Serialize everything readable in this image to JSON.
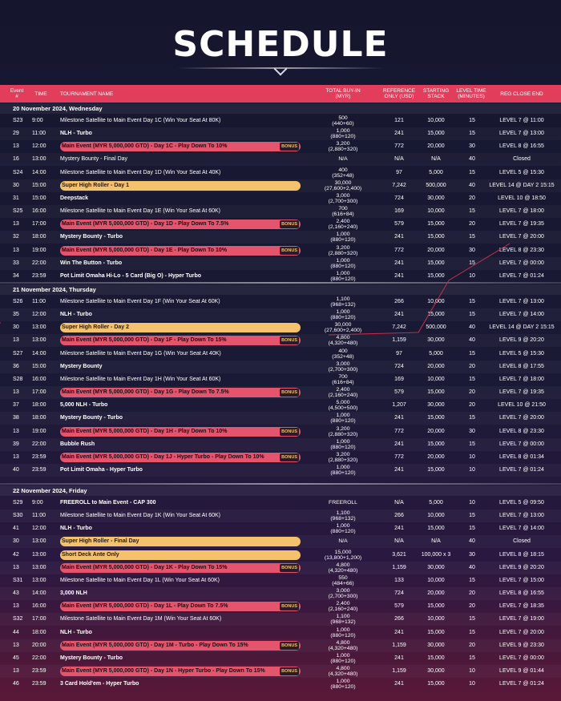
{
  "title": "SCHEDULE",
  "columns": {
    "event": "Event #",
    "time": "TIME",
    "name": "TOURNAMENT NAME",
    "buyin": "TOTAL BUY-IN (MYR)",
    "ref": "REFERENCE ONLY (USD)",
    "stack": "STARTING STACK",
    "level": "LEVEL TIME (MINUTES)",
    "reg": "REG CLOSE END"
  },
  "badge_label": "BONUS",
  "sections": [
    {
      "date": "20 November 2024, Wednesday",
      "rows": [
        {
          "event": "S23",
          "time": "9:00",
          "name": "Milestone Satellite to Main Event Day 1C (Win Your Seat At 80K)",
          "hl": "",
          "buy1": "500",
          "buy2": "(440+60)",
          "ref": "121",
          "stack": "10,000",
          "level": "15",
          "reg": "LEVEL 7 @ 11:00"
        },
        {
          "event": "29",
          "time": "11:00",
          "name": "NLH - Turbo",
          "hl": "bold",
          "buy1": "1,000",
          "buy2": "(880+120)",
          "ref": "241",
          "stack": "15,000",
          "level": "15",
          "reg": "LEVEL 7 @ 13:00"
        },
        {
          "event": "13",
          "time": "12:00",
          "name": "Main Event (MYR 5,000,000 GTD) - Day 1C - Play Down To 10%",
          "hl": "red",
          "badge": true,
          "buy1": "3,200",
          "buy2": "(2,880+320)",
          "ref": "772",
          "stack": "20,000",
          "level": "30",
          "reg": "LEVEL 8 @ 16:55"
        },
        {
          "event": "16",
          "time": "13:00",
          "name": "Mystery Bounty - Final Day",
          "hl": "",
          "buy1": "N/A",
          "buy2": "",
          "ref": "N/A",
          "stack": "N/A",
          "level": "40",
          "reg": "Closed"
        },
        {
          "event": "S24",
          "time": "14:00",
          "name": "Milestone Satellite to Main Event Day 1D (Win Your Seat At 40K)",
          "hl": "",
          "buy1": "400",
          "buy2": "(352+48)",
          "ref": "97",
          "stack": "5,000",
          "level": "15",
          "reg": "LEVEL 5 @ 15:30"
        },
        {
          "event": "30",
          "time": "15:00",
          "name": "Super High Roller - Day 1",
          "hl": "yellow",
          "buy1": "30,000",
          "buy2": "(27,600+2,400)",
          "ref": "7,242",
          "stack": "500,000",
          "level": "40",
          "reg": "LEVEL 14 @ DAY 2 15:15"
        },
        {
          "event": "31",
          "time": "15:00",
          "name": "Deepstack",
          "hl": "bold",
          "buy1": "3,000",
          "buy2": "(2,700+300)",
          "ref": "724",
          "stack": "30,000",
          "level": "20",
          "reg": "LEVEL 10 @ 18:50"
        },
        {
          "event": "S25",
          "time": "16:00",
          "name": "Milestone Satellite to Main Event Day 1E (Win Your Seat At 60K)",
          "hl": "",
          "buy1": "700",
          "buy2": "(616+84)",
          "ref": "169",
          "stack": "10,000",
          "level": "15",
          "reg": "LEVEL 7 @ 18:00"
        },
        {
          "event": "13",
          "time": "17:00",
          "name": "Main Event (MYR 5,000,000 GTD) - Day 1D - Play Down To 7.5%",
          "hl": "red",
          "badge": true,
          "buy1": "2,400",
          "buy2": "(2,160+240)",
          "ref": "579",
          "stack": "15,000",
          "level": "20",
          "reg": "LEVEL 7 @ 19:35"
        },
        {
          "event": "32",
          "time": "18:00",
          "name": "Mystery Bounty - Turbo",
          "hl": "bold",
          "buy1": "1,000",
          "buy2": "(880+120)",
          "ref": "241",
          "stack": "15,000",
          "level": "15",
          "reg": "LEVEL 7 @ 20:00"
        },
        {
          "event": "13",
          "time": "19:00",
          "name": "Main Event (MYR 5,000,000 GTD) - Day 1E - Play Down To 10%",
          "hl": "red",
          "badge": true,
          "buy1": "3,200",
          "buy2": "(2,880+320)",
          "ref": "772",
          "stack": "20,000",
          "level": "30",
          "reg": "LEVEL 8 @ 23:30"
        },
        {
          "event": "33",
          "time": "22:00",
          "name": "Win The Button - Turbo",
          "hl": "bold",
          "buy1": "1,000",
          "buy2": "(880+120)",
          "ref": "241",
          "stack": "15,000",
          "level": "15",
          "reg": "LEVEL 7 @ 00:00"
        },
        {
          "event": "34",
          "time": "23:59",
          "name": "Pot Limit Omaha Hi-Lo - 5 Card (Big O) - Hyper Turbo",
          "hl": "bold",
          "buy1": "1,000",
          "buy2": "(880+120)",
          "ref": "241",
          "stack": "15,000",
          "level": "10",
          "reg": "LEVEL 7 @ 01:24"
        }
      ]
    },
    {
      "date": "21 November 2024, Thursday",
      "rows": [
        {
          "event": "S26",
          "time": "11:00",
          "name": "Milestone Satellite to Main Event Day 1F (Win Your Seat At 60K)",
          "hl": "",
          "buy1": "1,100",
          "buy2": "(968+132)",
          "ref": "266",
          "stack": "10,000",
          "level": "15",
          "reg": "LEVEL 7 @ 13:00"
        },
        {
          "event": "35",
          "time": "12:00",
          "name": "NLH - Turbo",
          "hl": "bold",
          "buy1": "1,000",
          "buy2": "(880+120)",
          "ref": "241",
          "stack": "15,000",
          "level": "15",
          "reg": "LEVEL 7 @ 14:00"
        },
        {
          "event": "30",
          "time": "13:00",
          "name": "Super High Roller - Day 2",
          "hl": "yellow",
          "buy1": "30,000",
          "buy2": "(27,600+2,400)",
          "ref": "7,242",
          "stack": "500,000",
          "level": "40",
          "reg": "LEVEL 14 @ DAY 2 15:15"
        },
        {
          "event": "13",
          "time": "13:00",
          "name": "Main Event (MYR 5,000,000 GTD) - Day 1F - Play Down To 15%",
          "hl": "red",
          "badge": true,
          "buy1": "4,800",
          "buy2": "(4,320+480)",
          "ref": "1,159",
          "stack": "30,000",
          "level": "40",
          "reg": "LEVEL 9 @ 20:20"
        },
        {
          "event": "S27",
          "time": "14:00",
          "name": "Milestone Satellite to Main Event Day 1G (Win Your Seat At 40K)",
          "hl": "",
          "buy1": "400",
          "buy2": "(352+48)",
          "ref": "97",
          "stack": "5,000",
          "level": "15",
          "reg": "LEVEL 5 @ 15:30"
        },
        {
          "event": "36",
          "time": "15:00",
          "name": "Mystery Bounty",
          "hl": "bold",
          "buy1": "3,000",
          "buy2": "(2,700+300)",
          "ref": "724",
          "stack": "20,000",
          "level": "20",
          "reg": "LEVEL 8 @ 17:55"
        },
        {
          "event": "S28",
          "time": "16:00",
          "name": "Milestone Satellite to Main Event Day 1H (Win Your Seat At 60K)",
          "hl": "",
          "buy1": "700",
          "buy2": "(616+84)",
          "ref": "169",
          "stack": "10,000",
          "level": "15",
          "reg": "LEVEL 7 @ 18:00"
        },
        {
          "event": "13",
          "time": "17:00",
          "name": "Main Event (MYR 5,000,000 GTD) - Day 1G - Play Down To 7.5%",
          "hl": "red",
          "badge": true,
          "buy1": "2,400",
          "buy2": "(2,160+240)",
          "ref": "579",
          "stack": "15,000",
          "level": "20",
          "reg": "LEVEL 7 @ 19:35"
        },
        {
          "event": "37",
          "time": "18:00",
          "name": "5,000 NLH - Turbo",
          "hl": "bold",
          "buy1": "5,000",
          "buy2": "(4,500+500)",
          "ref": "1,207",
          "stack": "30,000",
          "level": "20",
          "reg": "LEVEL 10 @ 21:50"
        },
        {
          "event": "38",
          "time": "18:00",
          "name": "Mystery Bounty - Turbo",
          "hl": "bold",
          "buy1": "1,000",
          "buy2": "(880+120)",
          "ref": "241",
          "stack": "15,000",
          "level": "15",
          "reg": "LEVEL 7 @ 20:00"
        },
        {
          "event": "13",
          "time": "19:00",
          "name": "Main Event (MYR 5,000,000 GTD) - Day 1H - Play Down To 10%",
          "hl": "red",
          "badge": true,
          "buy1": "3,200",
          "buy2": "(2,880+320)",
          "ref": "772",
          "stack": "20,000",
          "level": "30",
          "reg": "LEVEL 8 @ 23:30"
        },
        {
          "event": "39",
          "time": "22:00",
          "name": "Bubble Rush",
          "hl": "bold",
          "buy1": "1,000",
          "buy2": "(880+120)",
          "ref": "241",
          "stack": "15,000",
          "level": "15",
          "reg": "LEVEL 7 @ 00:00"
        },
        {
          "event": "13",
          "time": "23:59",
          "name": "Main Event (MYR 5,000,000 GTD) - Day 1J - Hyper Turbo - Play Down To 10%",
          "hl": "red",
          "badge": true,
          "buy1": "3,200",
          "buy2": "(2,880+320)",
          "ref": "772",
          "stack": "20,000",
          "level": "10",
          "reg": "LEVEL 8 @ 01:34"
        },
        {
          "event": "40",
          "time": "23:59",
          "name": "Pot Limit Omaha - Hyper Turbo",
          "hl": "bold",
          "buy1": "1,000",
          "buy2": "(880+120)",
          "ref": "241",
          "stack": "15,000",
          "level": "10",
          "reg": "LEVEL 7 @ 01:24"
        }
      ]
    },
    {
      "date": "22 November 2024, Friday",
      "rows": [
        {
          "event": "S29",
          "time": "9:00",
          "name": "FREEROLL to Main Event - CAP 300",
          "hl": "bold",
          "buy1": "FREEROLL",
          "buy2": "",
          "ref": "N/A",
          "stack": "5,000",
          "level": "10",
          "reg": "LEVEL 5 @ 09:50"
        },
        {
          "event": "S30",
          "time": "11:00",
          "name": "Milestone Satellite to Main Event Day 1K (Win Your Seat At 60K)",
          "hl": "",
          "buy1": "1,100",
          "buy2": "(968+132)",
          "ref": "266",
          "stack": "10,000",
          "level": "15",
          "reg": "LEVEL 7 @ 13:00"
        },
        {
          "event": "41",
          "time": "12:00",
          "name": "NLH - Turbo",
          "hl": "bold",
          "buy1": "1,000",
          "buy2": "(880+120)",
          "ref": "241",
          "stack": "15,000",
          "level": "15",
          "reg": "LEVEL 7 @ 14:00"
        },
        {
          "event": "30",
          "time": "13:00",
          "name": "Super High Roller - Final Day",
          "hl": "yellow",
          "buy1": "N/A",
          "buy2": "",
          "ref": "N/A",
          "stack": "N/A",
          "level": "40",
          "reg": "Closed"
        },
        {
          "event": "42",
          "time": "13:00",
          "name": "Short Deck Ante Only",
          "hl": "yellow",
          "buy1": "15,000",
          "buy2": "(13,800+1,200)",
          "ref": "3,621",
          "stack": "100,000 x 3",
          "level": "30",
          "reg": "LEVEL 8 @ 18:15"
        },
        {
          "event": "13",
          "time": "13:00",
          "name": "Main Event (MYR 5,000,000 GTD) - Day 1K - Play Down To 15%",
          "hl": "red",
          "badge": true,
          "buy1": "4,800",
          "buy2": "(4,320+480)",
          "ref": "1,159",
          "stack": "30,000",
          "level": "40",
          "reg": "LEVEL 9 @ 20:20"
        },
        {
          "event": "S31",
          "time": "13:00",
          "name": "Milestone Satellite to Main Event Day 1L (Win Your Seat At 60K)",
          "hl": "",
          "buy1": "550",
          "buy2": "(484+66)",
          "ref": "133",
          "stack": "10,000",
          "level": "15",
          "reg": "LEVEL 7 @ 15:00"
        },
        {
          "event": "43",
          "time": "14:00",
          "name": "3,000 NLH",
          "hl": "bold",
          "buy1": "3,000",
          "buy2": "(2,700+300)",
          "ref": "724",
          "stack": "20,000",
          "level": "20",
          "reg": "LEVEL 8 @ 16:55"
        },
        {
          "event": "13",
          "time": "16:00",
          "name": "Main Event (MYR 5,000,000 GTD) - Day 1L - Play Down To 7.5%",
          "hl": "red",
          "badge": true,
          "buy1": "2,400",
          "buy2": "(2,160+240)",
          "ref": "579",
          "stack": "15,000",
          "level": "20",
          "reg": "LEVEL 7 @ 18:35"
        },
        {
          "event": "S32",
          "time": "17:00",
          "name": "Milestone Satellite to Main Event Day 1M (Win Your Seat At 60K)",
          "hl": "",
          "buy1": "1,100",
          "buy2": "(968+132)",
          "ref": "266",
          "stack": "10,000",
          "level": "15",
          "reg": "LEVEL 7 @ 19:00"
        },
        {
          "event": "44",
          "time": "18:00",
          "name": "NLH - Turbo",
          "hl": "bold",
          "buy1": "1,000",
          "buy2": "(880+120)",
          "ref": "241",
          "stack": "15,000",
          "level": "15",
          "reg": "LEVEL 7 @ 20:00"
        },
        {
          "event": "13",
          "time": "20:00",
          "name": "Main Event (MYR 5,000,000 GTD) - Day 1M - Turbo - Play Down To 15%",
          "hl": "red",
          "badge": true,
          "buy1": "4,800",
          "buy2": "(4,320+480)",
          "ref": "1,159",
          "stack": "30,000",
          "level": "20",
          "reg": "LEVEL 9 @ 23:30"
        },
        {
          "event": "45",
          "time": "22:00",
          "name": "Mystery Bounty - Turbo",
          "hl": "bold",
          "buy1": "1,000",
          "buy2": "(880+120)",
          "ref": "241",
          "stack": "15,000",
          "level": "15",
          "reg": "LEVEL 7 @ 00:00"
        },
        {
          "event": "13",
          "time": "23:59",
          "name": "Main Event (MYR 5,000,000 GTD) - Day 1N - Hyper Turbo - Play Down To 15%",
          "hl": "red",
          "badge": true,
          "buy1": "4,800",
          "buy2": "(4,320+480)",
          "ref": "1,159",
          "stack": "30,000",
          "level": "10",
          "reg": "LEVEL 9 @ 01:44"
        },
        {
          "event": "46",
          "time": "23:59",
          "name": "3 Card Hold'em - Hyper Turbo",
          "hl": "bold",
          "buy1": "1,000",
          "buy2": "(880+120)",
          "ref": "241",
          "stack": "15,000",
          "level": "10",
          "reg": "LEVEL 7 @ 01:24"
        }
      ]
    }
  ]
}
